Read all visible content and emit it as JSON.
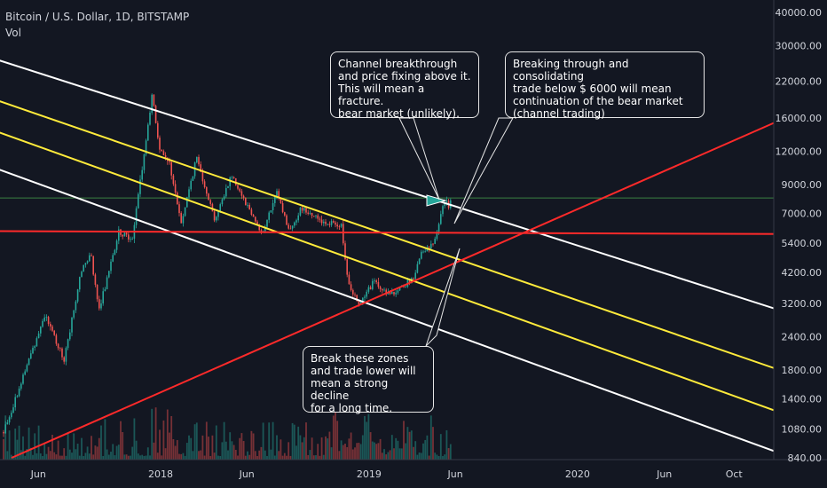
{
  "header": {
    "title": "Bitcoin / U.S. Dollar, 1D, BITSTAMP",
    "volume_label": "Vol"
  },
  "chart_data": {
    "type": "candlestick",
    "y_scale": "log",
    "y_ticks": [
      "40000.00",
      "30000.00",
      "22000.00",
      "16000.00",
      "12000.00",
      "9000.00",
      "7000.00",
      "5400.00",
      "4200.00",
      "3200.00",
      "2400.00",
      "1800.00",
      "1400.00",
      "1080.00",
      "840.00"
    ],
    "x_ticks": [
      "Jun",
      "2018",
      "Jun",
      "2019",
      "Jun",
      "2020",
      "Jun",
      "Oct"
    ],
    "price_path": [
      [
        "2017-04-01",
        1050
      ],
      [
        "2017-05-20",
        2100
      ],
      [
        "2017-06-12",
        2900
      ],
      [
        "2017-07-16",
        1950
      ],
      [
        "2017-08-15",
        4300
      ],
      [
        "2017-09-01",
        4900
      ],
      [
        "2017-09-15",
        3000
      ],
      [
        "2017-10-20",
        6000
      ],
      [
        "2017-11-12",
        5600
      ],
      [
        "2017-12-01",
        10800
      ],
      [
        "2017-12-17",
        19500
      ],
      [
        "2017-12-30",
        12500
      ],
      [
        "2018-01-16",
        11000
      ],
      [
        "2018-02-06",
        6400
      ],
      [
        "2018-03-05",
        11400
      ],
      [
        "2018-04-06",
        6600
      ],
      [
        "2018-05-05",
        9800
      ],
      [
        "2018-06-28",
        5850
      ],
      [
        "2018-07-24",
        8400
      ],
      [
        "2018-08-14",
        6000
      ],
      [
        "2018-09-05",
        7350
      ],
      [
        "2018-10-15",
        6500
      ],
      [
        "2018-11-14",
        6300
      ],
      [
        "2018-11-25",
        3800
      ],
      [
        "2018-12-15",
        3200
      ],
      [
        "2019-01-10",
        3900
      ],
      [
        "2019-02-07",
        3400
      ],
      [
        "2019-03-20",
        4000
      ],
      [
        "2019-04-02",
        4950
      ],
      [
        "2019-04-25",
        5400
      ],
      [
        "2019-05-14",
        8000
      ],
      [
        "2019-05-19",
        7300
      ],
      [
        "2019-05-26",
        8000
      ]
    ],
    "lines": [
      {
        "color": "#ffffff",
        "from": [
          "2017-03-10",
          27000
        ],
        "to": [
          "2021-01-15",
          2900
        ]
      },
      {
        "color": "#ffeb3b",
        "from": [
          "2017-03-10",
          19000
        ],
        "to": [
          "2021-01-15",
          1720
        ]
      },
      {
        "color": "#ffeb3b",
        "from": [
          "2017-03-10",
          14500
        ],
        "to": [
          "2021-01-15",
          1190
        ]
      },
      {
        "color": "#ffffff",
        "from": [
          "2017-03-10",
          10500
        ],
        "to": [
          "2021-01-15",
          835
        ]
      },
      {
        "color": "#ff2a2a",
        "from": [
          "2017-03-10",
          6000
        ],
        "to": [
          "2021-01-15",
          5850
        ]
      },
      {
        "color": "#ff2a2a",
        "from": [
          "2017-04-15",
          840
        ],
        "to": [
          "2021-01-15",
          16600
        ]
      }
    ],
    "green_level": 8000,
    "callouts": [
      {
        "text": "Channel breakthrough\nand price fixing above it.\nThis will mean a fracture.\nbear market (unlikely)."
      },
      {
        "text": "Breaking through and consolidating\ntrade below $ 6000 will mean\ncontinuation of the bear market\n(channel trading)"
      },
      {
        "text": "Break these zones\nand trade lower will\nmean a strong decline\nfor a long time."
      }
    ],
    "colors": {
      "background": "#131722",
      "up": "#26a69a",
      "down": "#ef5350",
      "axis_text": "#d1d4dc",
      "grid_green": "#4caf50",
      "highlight": "#26a69a"
    }
  }
}
